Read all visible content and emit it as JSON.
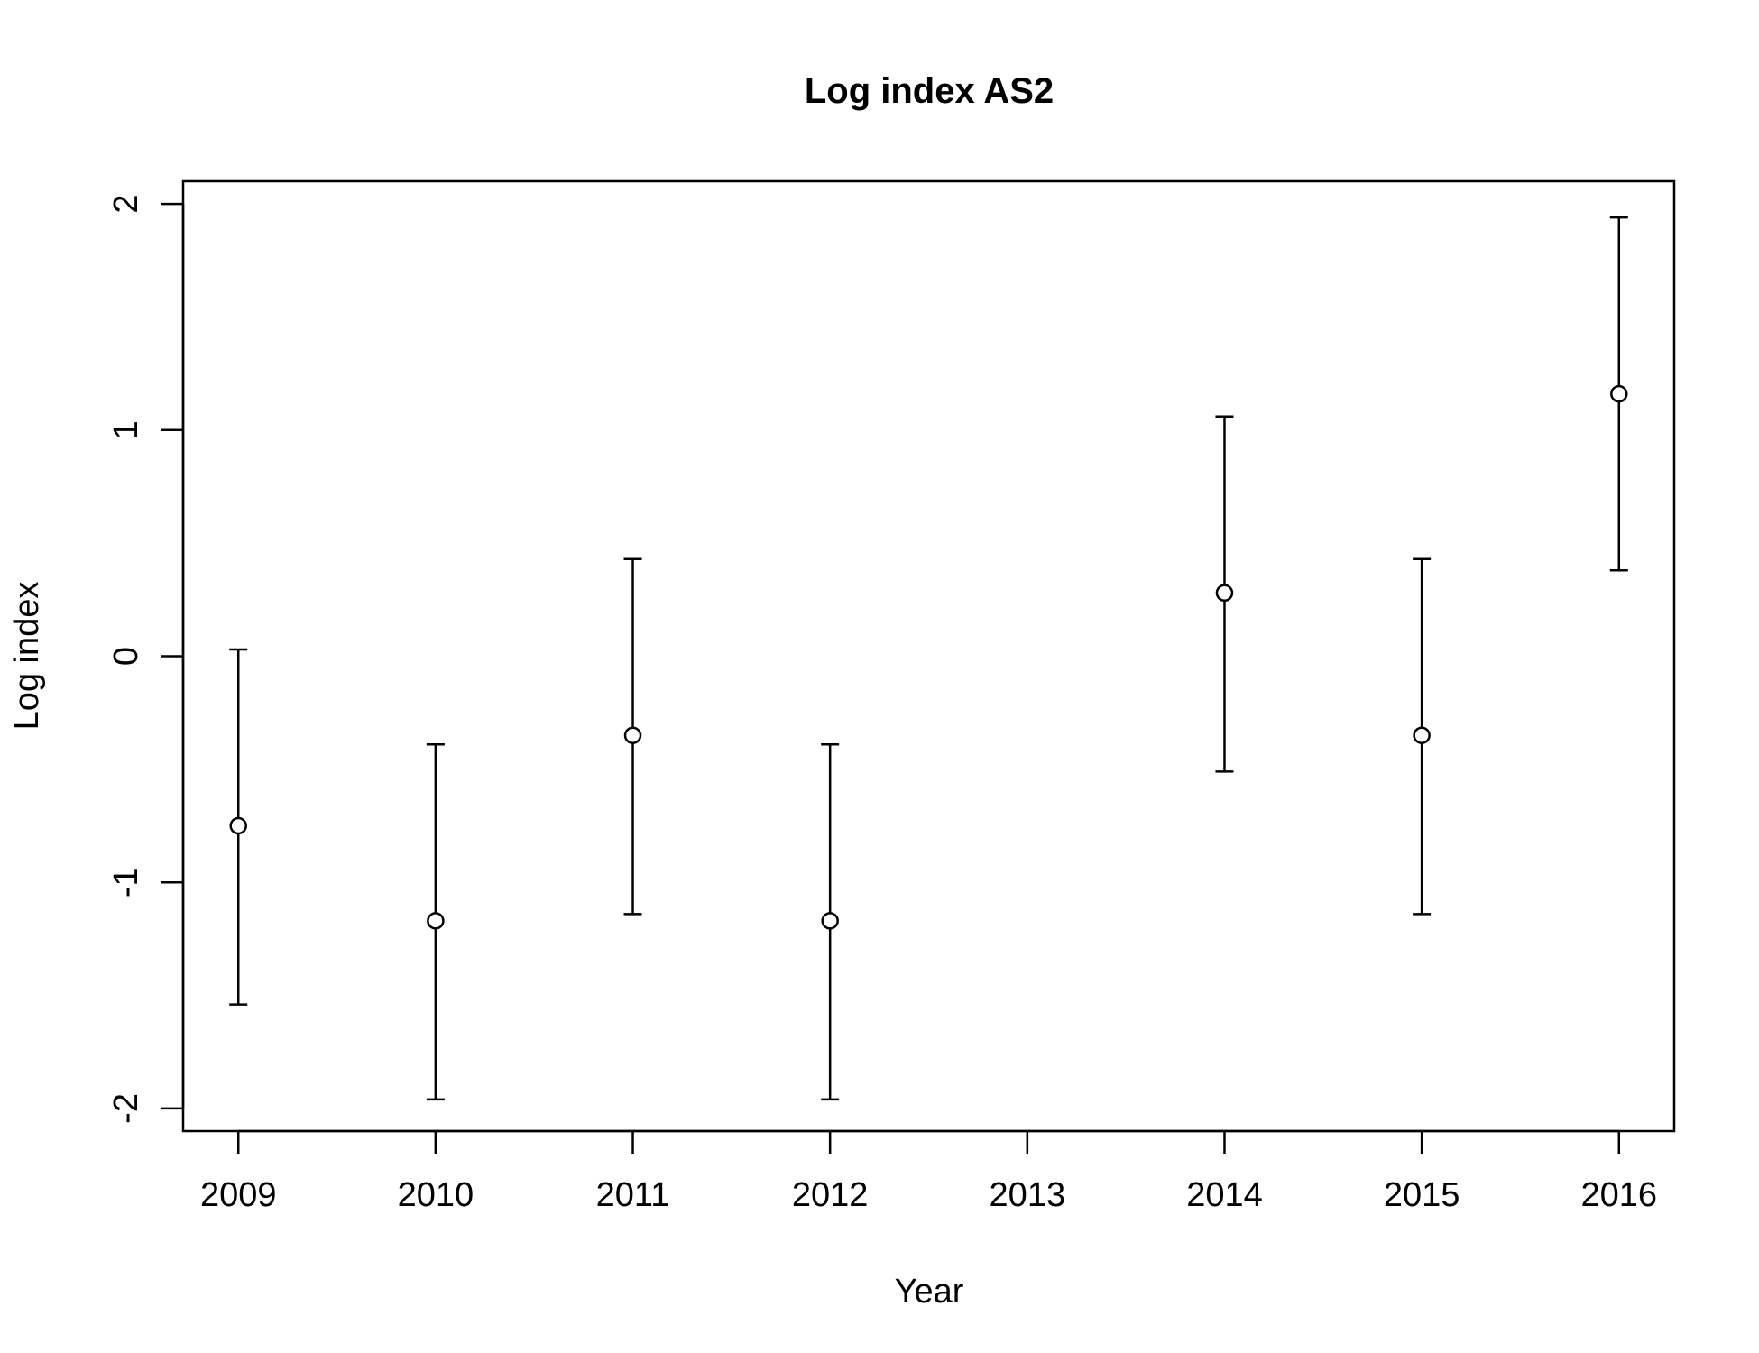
{
  "chart_data": {
    "type": "scatter",
    "title": "Log index AS2",
    "xlabel": "Year",
    "ylabel": "Log index",
    "xlim": [
      2008.72,
      2016.28
    ],
    "ylim": [
      -2.1,
      2.1
    ],
    "x_ticks": [
      2009,
      2010,
      2011,
      2012,
      2013,
      2014,
      2015,
      2016
    ],
    "x_tick_labels": [
      "2009",
      "2010",
      "2011",
      "2012",
      "2013",
      "2014",
      "2015",
      "2016"
    ],
    "y_ticks": [
      -2,
      -1,
      0,
      1,
      2
    ],
    "y_tick_labels": [
      "-2",
      "-1",
      "0",
      "1",
      "2"
    ],
    "grid": false,
    "legend": "none",
    "point_style": "open-circle",
    "points": [
      {
        "x": 2009,
        "y": -0.75,
        "lower": -1.54,
        "upper": 0.03
      },
      {
        "x": 2010,
        "y": -1.17,
        "lower": -1.96,
        "upper": -0.39
      },
      {
        "x": 2011,
        "y": -0.35,
        "lower": -1.14,
        "upper": 0.43
      },
      {
        "x": 2012,
        "y": -1.17,
        "lower": -1.96,
        "upper": -0.39
      },
      {
        "x": 2014,
        "y": 0.28,
        "lower": -0.51,
        "upper": 1.06
      },
      {
        "x": 2015,
        "y": -0.35,
        "lower": -1.14,
        "upper": 0.43
      },
      {
        "x": 2016,
        "y": 1.16,
        "lower": 0.38,
        "upper": 1.94
      }
    ]
  }
}
